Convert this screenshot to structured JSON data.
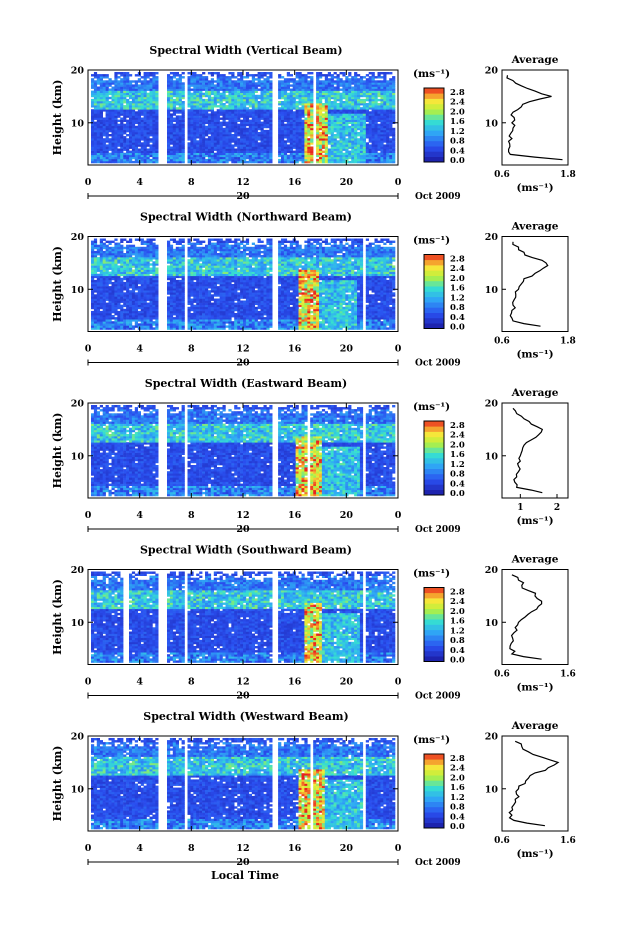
{
  "figure": {
    "xlabel": "Local Time",
    "date_label": "Oct 2009",
    "date_mark": "20",
    "colorbar_unit": "(ms⁻¹)",
    "colorbar_ticks": [
      "2.8",
      "2.4",
      "2.0",
      "1.6",
      "1.2",
      "0.8",
      "0.4",
      "0.0"
    ],
    "ylabel": "Height (km)",
    "average_title": "Average",
    "average_unit": "(ms⁻¹)"
  },
  "chart_data": [
    {
      "type": "heatmap",
      "title": "Spectral Width (Vertical Beam)",
      "xlabel": "Local Time",
      "ylabel": "Height (km)",
      "xlim": [
        0,
        24
      ],
      "ylim": [
        2,
        20
      ],
      "xticks": [
        "0",
        "4",
        "8",
        "12",
        "16",
        "20",
        "0"
      ],
      "yticks": [
        "20",
        "10"
      ],
      "zlim": [
        0,
        2.8
      ],
      "colorbar_unit": "(ms-1)",
      "data_gaps_hours": [
        [
          5.4,
          5.9
        ],
        [
          6.6,
          6.8
        ],
        [
          7.3,
          7.6
        ],
        [
          8.9,
          9.1
        ],
        [
          14.2,
          14.7
        ],
        [
          17.6,
          17.8
        ]
      ],
      "high_width_band_hours": [
        16.8,
        18.6
      ],
      "average": {
        "xlabel": "(ms-1)",
        "xticks": [
          "0.6",
          "1.8"
        ],
        "xlim": [
          0.6,
          1.8
        ],
        "yticks": [
          "20",
          "10"
        ],
        "heights": [
          3,
          4,
          5,
          6,
          7,
          8,
          9,
          10,
          11,
          12,
          13,
          14,
          15,
          16,
          17,
          18,
          19
        ],
        "values": [
          1.7,
          0.75,
          0.72,
          0.74,
          0.78,
          0.76,
          0.8,
          0.78,
          0.82,
          0.8,
          0.95,
          1.1,
          1.5,
          1.2,
          0.95,
          0.8,
          0.7
        ]
      }
    },
    {
      "type": "heatmap",
      "title": "Spectral Width (Northward Beam)",
      "xlabel": "Local Time",
      "ylabel": "Height (km)",
      "xlim": [
        0,
        24
      ],
      "ylim": [
        2,
        20
      ],
      "xticks": [
        "0",
        "4",
        "8",
        "12",
        "16",
        "20",
        "0"
      ],
      "yticks": [
        "20",
        "10"
      ],
      "zlim": [
        0,
        2.8
      ],
      "colorbar_unit": "(ms-1)",
      "data_gaps_hours": [
        [
          5.4,
          5.9
        ],
        [
          6.6,
          6.8
        ],
        [
          7.3,
          7.6
        ],
        [
          8.9,
          9.1
        ],
        [
          14.2,
          14.7
        ],
        [
          21.5,
          21.7
        ]
      ],
      "high_width_band_hours": [
        16.5,
        18.0
      ],
      "average": {
        "xlabel": "(ms-1)",
        "xticks": [
          "0.6",
          "1.8"
        ],
        "xlim": [
          0.6,
          1.8
        ],
        "yticks": [
          "20",
          "10"
        ],
        "heights": [
          3,
          4,
          5,
          6,
          7,
          8,
          9,
          10,
          11,
          12,
          13,
          14,
          15,
          16,
          17,
          18,
          19
        ],
        "values": [
          1.3,
          0.8,
          0.75,
          0.78,
          0.8,
          0.82,
          0.85,
          0.9,
          0.95,
          1.0,
          1.2,
          1.35,
          1.4,
          1.15,
          1.0,
          0.9,
          0.8
        ]
      }
    },
    {
      "type": "heatmap",
      "title": "Spectral Width (Eastward Beam)",
      "xlabel": "Local Time",
      "ylabel": "Height (km)",
      "xlim": [
        0,
        24
      ],
      "ylim": [
        2,
        20
      ],
      "xticks": [
        "0",
        "4",
        "8",
        "12",
        "16",
        "20",
        "0"
      ],
      "yticks": [
        "20",
        "10"
      ],
      "zlim": [
        0,
        2.8
      ],
      "colorbar_unit": "(ms-1)",
      "data_gaps_hours": [
        [
          5.4,
          5.9
        ],
        [
          6.6,
          6.8
        ],
        [
          7.3,
          7.6
        ],
        [
          8.9,
          9.1
        ],
        [
          14.2,
          14.7
        ],
        [
          17.0,
          17.2
        ],
        [
          21.5,
          21.7
        ]
      ],
      "high_width_band_hours": [
        16.2,
        18.3
      ],
      "average": {
        "xlabel": "(ms-1)",
        "xticks": [
          "1",
          "2"
        ],
        "xlim": [
          0.5,
          2.3
        ],
        "yticks": [
          "20",
          "10"
        ],
        "heights": [
          3,
          4,
          5,
          6,
          7,
          8,
          9,
          10,
          11,
          12,
          13,
          14,
          15,
          16,
          17,
          18,
          19
        ],
        "values": [
          1.6,
          0.9,
          0.85,
          0.9,
          0.95,
          0.95,
          1.0,
          1.0,
          1.05,
          1.1,
          1.3,
          1.5,
          1.6,
          1.3,
          1.1,
          0.9,
          0.8
        ]
      }
    },
    {
      "type": "heatmap",
      "title": "Spectral Width (Southward Beam)",
      "xlabel": "Local Time",
      "ylabel": "Height (km)",
      "xlim": [
        0,
        24
      ],
      "ylim": [
        2,
        20
      ],
      "xticks": [
        "0",
        "4",
        "8",
        "12",
        "16",
        "20",
        "0"
      ],
      "yticks": [
        "20",
        "10"
      ],
      "zlim": [
        0,
        2.8
      ],
      "colorbar_unit": "(ms-1)",
      "data_gaps_hours": [
        [
          2.6,
          2.9
        ],
        [
          5.4,
          5.9
        ],
        [
          6.6,
          6.8
        ],
        [
          7.3,
          7.6
        ],
        [
          8.9,
          9.1
        ],
        [
          14.2,
          14.7
        ],
        [
          21.5,
          21.7
        ]
      ],
      "high_width_band_hours": [
        16.8,
        18.2
      ],
      "average": {
        "xlabel": "(ms-1)",
        "xticks": [
          "0.6",
          "1.6"
        ],
        "xlim": [
          0.6,
          1.6
        ],
        "yticks": [
          "20",
          "10"
        ],
        "heights": [
          3,
          4,
          5,
          6,
          7,
          8,
          9,
          10,
          11,
          12,
          13,
          14,
          15,
          16,
          17,
          18,
          19
        ],
        "values": [
          1.2,
          0.75,
          0.72,
          0.74,
          0.76,
          0.78,
          0.8,
          0.85,
          0.95,
          1.05,
          1.15,
          1.2,
          1.1,
          1.0,
          0.9,
          0.85,
          0.75
        ]
      }
    },
    {
      "type": "heatmap",
      "title": "Spectral Width (Westward Beam)",
      "xlabel": "Local Time",
      "ylabel": "Height (km)",
      "xlim": [
        0,
        24
      ],
      "ylim": [
        2,
        20
      ],
      "xticks": [
        "0",
        "4",
        "8",
        "12",
        "16",
        "20",
        "0"
      ],
      "yticks": [
        "20",
        "10"
      ],
      "zlim": [
        0,
        2.8
      ],
      "colorbar_unit": "(ms-1)",
      "data_gaps_hours": [
        [
          5.4,
          5.9
        ],
        [
          6.6,
          6.8
        ],
        [
          7.3,
          7.6
        ],
        [
          8.9,
          9.1
        ],
        [
          14.2,
          14.7
        ],
        [
          17.4,
          17.6
        ],
        [
          21.5,
          21.7
        ]
      ],
      "high_width_band_hours": [
        16.5,
        18.4
      ],
      "average": {
        "xlabel": "(ms-1)",
        "xticks": [
          "0.6",
          "1.6"
        ],
        "xlim": [
          0.6,
          1.6
        ],
        "yticks": [
          "20",
          "10"
        ],
        "heights": [
          3,
          4,
          5,
          6,
          7,
          8,
          9,
          10,
          11,
          12,
          13,
          14,
          15,
          16,
          17,
          18,
          19
        ],
        "values": [
          1.25,
          0.78,
          0.75,
          0.76,
          0.78,
          0.8,
          0.82,
          0.85,
          0.95,
          1.0,
          1.1,
          1.3,
          1.45,
          1.2,
          1.0,
          0.9,
          0.8
        ]
      }
    }
  ]
}
